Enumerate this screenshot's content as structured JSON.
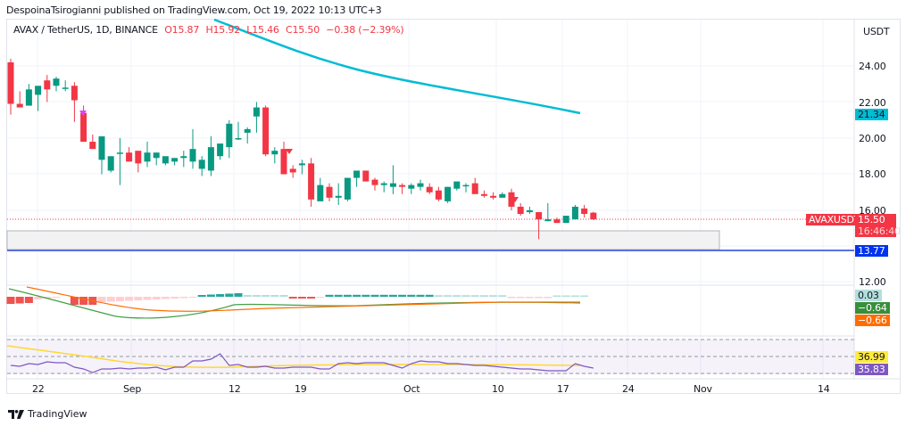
{
  "header": {
    "publisher_line": "DespoinaTsirogianni published on TradingView.com, Oct 19, 2022 10:13 UTC+3"
  },
  "legend": {
    "symbol": "AVAX / TetherUS, 1D, BINANCE",
    "open": "O15.87",
    "high": "H15.92",
    "low": "L15.46",
    "close": "C15.50",
    "change": "−0.38 (−2.39%)"
  },
  "price_axis": {
    "currency": "USDT",
    "ticks": [
      "24.00",
      "22.00",
      "20.00",
      "18.00",
      "16.00",
      "12.00"
    ],
    "tags": {
      "ma_value": "21.34",
      "symbol_name": "AVAXUSDT",
      "last_price": "15.50",
      "countdown": "16:46:40",
      "support_line": "13.77",
      "macd_hist": "0.03",
      "macd_line": "−0.64",
      "macd_signal": "−0.66",
      "rsi_ma": "36.99",
      "rsi": "35.83"
    }
  },
  "time_axis": {
    "ticks": [
      "22",
      "Sep",
      "12",
      "19",
      "Oct",
      "10",
      "17",
      "24",
      "Nov",
      "14"
    ]
  },
  "footer": {
    "brand": "TradingView"
  },
  "colors": {
    "up": "#089981",
    "down": "#f23645",
    "ma": "#00bcd4",
    "support": "#2962ff",
    "macd": "#43a047",
    "signal": "#ff6d00",
    "rsi": "#7e57c2",
    "rsi_ma": "#fdd835"
  },
  "chart_data": {
    "type": "candlestick",
    "title": "AVAX / TetherUS, 1D, BINANCE",
    "ylabel": "USDT",
    "ylim": [
      12,
      24.5
    ],
    "x_tick_labels": [
      "22",
      "Sep",
      "12",
      "19",
      "Oct",
      "10",
      "17",
      "24",
      "Nov",
      "14"
    ],
    "series": [
      {
        "name": "AVAXUSDT",
        "ohlc": [
          [
            24.2,
            24.4,
            21.3,
            21.9
          ],
          [
            21.9,
            22.6,
            21.8,
            21.7
          ],
          [
            21.8,
            23.0,
            21.8,
            22.7
          ],
          [
            22.4,
            22.6,
            21.5,
            22.9
          ],
          [
            23.2,
            23.5,
            22.0,
            22.7
          ],
          [
            22.9,
            23.4,
            22.6,
            23.3
          ],
          [
            22.8,
            23.2,
            22.6,
            22.8
          ],
          [
            22.9,
            23.1,
            20.9,
            22.1
          ],
          [
            21.4,
            21.8,
            21.3,
            19.8
          ],
          [
            19.8,
            20.2,
            19.4,
            19.4
          ],
          [
            18.8,
            19.6,
            18.0,
            20.1
          ],
          [
            18.2,
            18.6,
            18.1,
            19.0
          ],
          [
            19.2,
            20.0,
            17.4,
            19.2
          ],
          [
            19.2,
            19.5,
            18.8,
            18.7
          ],
          [
            19.3,
            19.2,
            18.1,
            18.6
          ],
          [
            18.7,
            19.8,
            18.4,
            19.2
          ],
          [
            18.9,
            19.2,
            18.5,
            19.2
          ],
          [
            18.6,
            18.8,
            18.5,
            19.0
          ],
          [
            18.7,
            18.9,
            18.5,
            18.9
          ],
          [
            18.9,
            19.3,
            18.4,
            19.0
          ],
          [
            18.7,
            20.5,
            18.3,
            19.4
          ],
          [
            18.3,
            19.0,
            17.9,
            18.8
          ],
          [
            18.2,
            20.1,
            17.9,
            19.5
          ],
          [
            19.0,
            19.5,
            18.8,
            19.7
          ],
          [
            19.5,
            21.0,
            18.9,
            20.8
          ],
          [
            20.0,
            20.9,
            19.9,
            20.0
          ],
          [
            20.3,
            20.6,
            19.7,
            20.5
          ],
          [
            21.2,
            22.0,
            20.3,
            21.7
          ],
          [
            21.7,
            21.8,
            19.0,
            19.1
          ],
          [
            19.1,
            19.5,
            18.6,
            19.3
          ],
          [
            19.4,
            19.8,
            18.0,
            18.0
          ],
          [
            18.3,
            18.5,
            17.8,
            18.1
          ],
          [
            18.5,
            18.8,
            18.0,
            18.6
          ],
          [
            18.6,
            18.9,
            16.2,
            16.6
          ],
          [
            16.5,
            17.8,
            16.5,
            17.4
          ],
          [
            17.3,
            17.5,
            16.5,
            16.7
          ],
          [
            16.7,
            17.5,
            16.3,
            16.8
          ],
          [
            16.6,
            17.7,
            16.5,
            17.8
          ],
          [
            17.8,
            18.1,
            17.3,
            18.2
          ],
          [
            18.2,
            18.0,
            17.6,
            17.6
          ],
          [
            17.7,
            17.8,
            17.1,
            17.4
          ],
          [
            17.4,
            17.6,
            17.0,
            17.5
          ],
          [
            17.3,
            18.5,
            16.9,
            17.5
          ],
          [
            17.4,
            17.5,
            16.9,
            17.3
          ],
          [
            17.2,
            17.5,
            16.9,
            17.4
          ],
          [
            17.3,
            17.7,
            17.1,
            17.5
          ],
          [
            17.3,
            17.5,
            16.9,
            17.0
          ],
          [
            17.1,
            17.3,
            16.5,
            16.6
          ],
          [
            16.5,
            17.3,
            16.4,
            17.3
          ],
          [
            17.2,
            17.5,
            17.1,
            17.6
          ],
          [
            17.4,
            17.5,
            17.0,
            17.4
          ],
          [
            17.5,
            17.8,
            17.0,
            16.9
          ],
          [
            16.9,
            17.1,
            16.7,
            16.8
          ],
          [
            16.8,
            17.0,
            16.6,
            16.7
          ],
          [
            16.7,
            17.0,
            16.7,
            16.9
          ],
          [
            17.0,
            17.2,
            16.0,
            16.2
          ],
          [
            16.2,
            16.4,
            15.7,
            15.8
          ],
          [
            15.9,
            16.2,
            15.8,
            16.0
          ],
          [
            15.9,
            15.9,
            14.4,
            15.5
          ],
          [
            15.4,
            16.4,
            15.4,
            15.5
          ],
          [
            15.5,
            15.6,
            15.3,
            15.3
          ],
          [
            15.3,
            15.7,
            15.3,
            15.7
          ],
          [
            15.5,
            16.3,
            15.5,
            16.2
          ],
          [
            16.1,
            16.3,
            15.6,
            15.8
          ],
          [
            15.87,
            15.92,
            15.46,
            15.5
          ]
        ]
      },
      {
        "name": "Moving average",
        "values_start": 23.2,
        "values_end": 21.34
      },
      {
        "name": "Support line",
        "value": 13.77
      },
      {
        "name": "MACD histogram",
        "last": 0.03
      },
      {
        "name": "MACD",
        "last": -0.64
      },
      {
        "name": "Signal",
        "last": -0.66
      },
      {
        "name": "RSI",
        "last": 35.83
      },
      {
        "name": "RSI MA",
        "last": 36.99
      }
    ]
  }
}
